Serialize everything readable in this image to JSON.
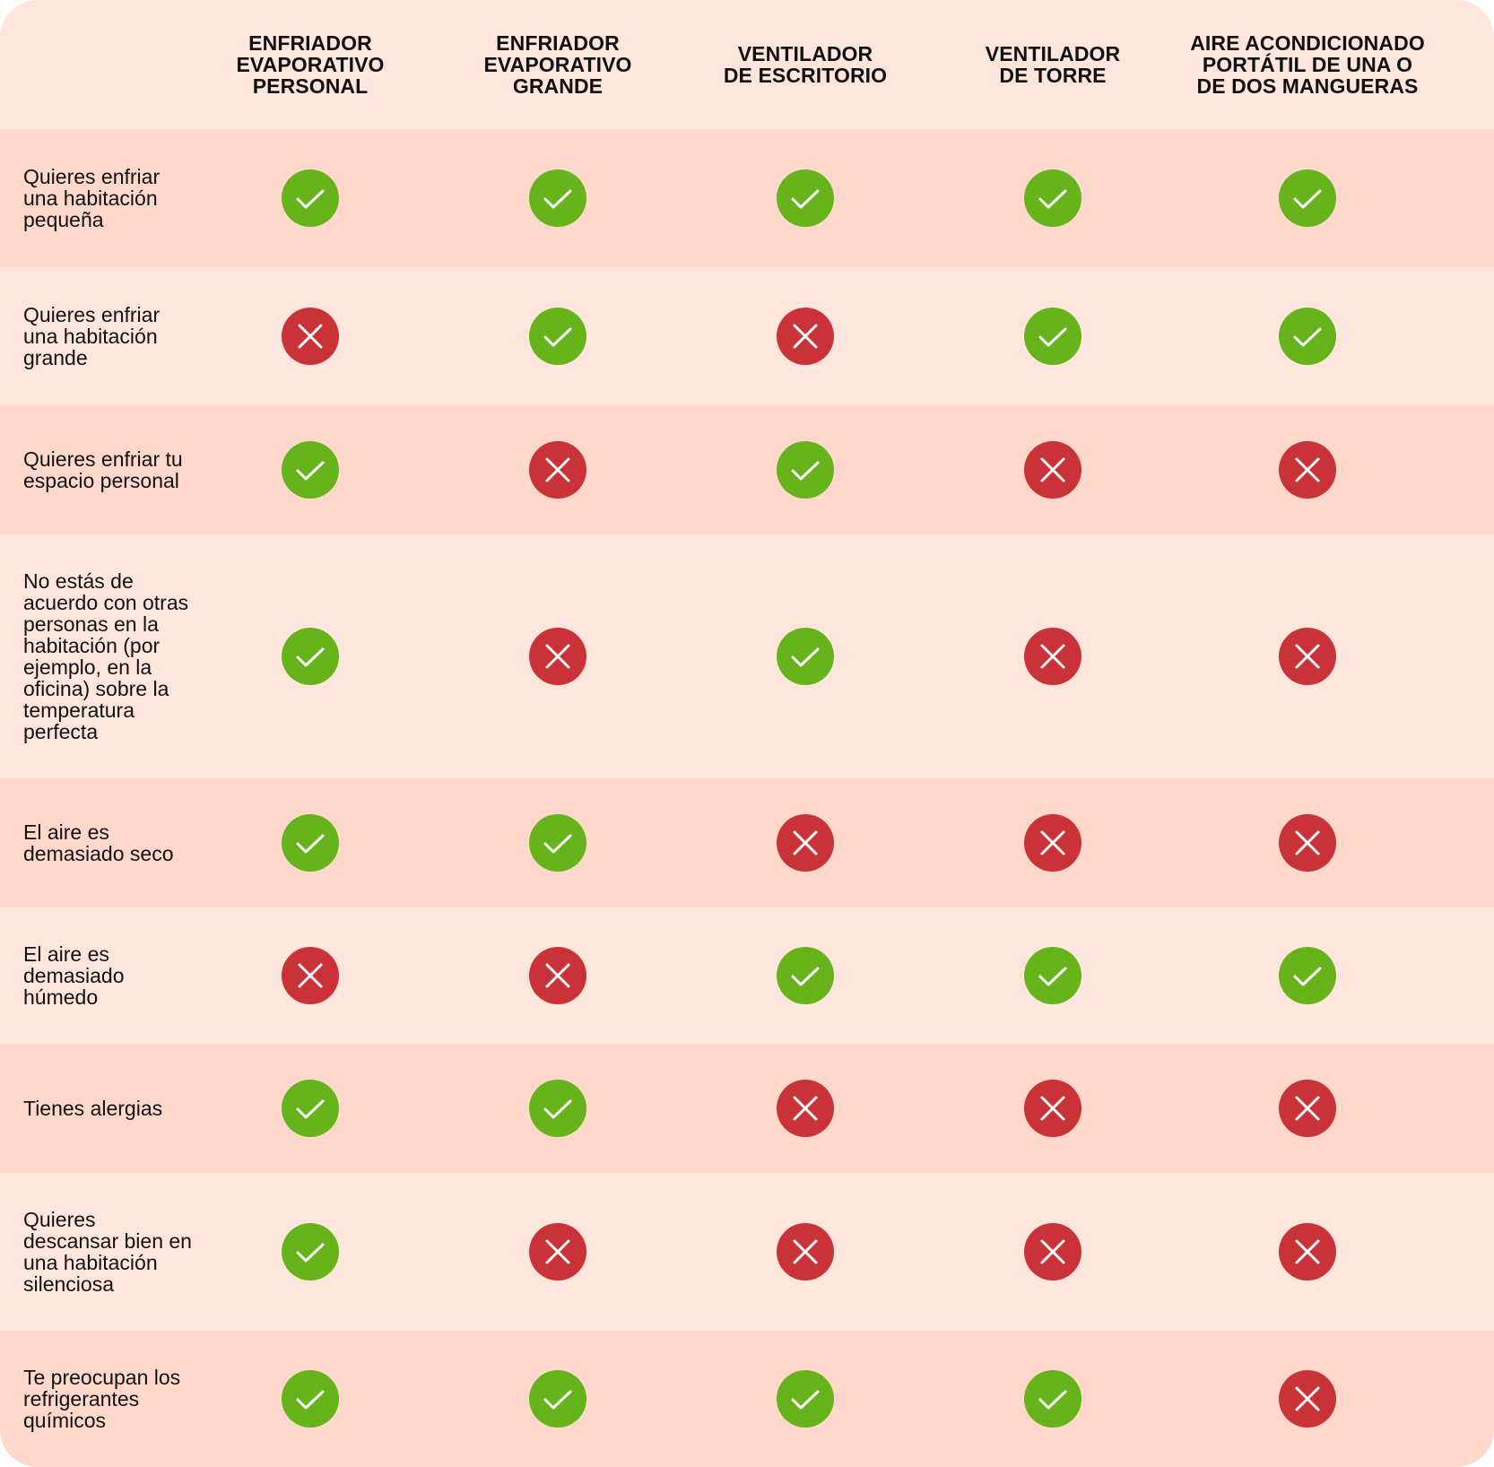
{
  "columns": [
    "ENFRIADOR\nEVAPORATIVO\nPERSONAL",
    "ENFRIADOR\nEVAPORATIVO\nGRANDE",
    "VENTILADOR\nDE ESCRITORIO",
    "VENTILADOR\nDE TORRE",
    "AIRE ACONDICIONADO\nPORTÁTIL DE UNA O\nDE DOS MANGUERAS"
  ],
  "rows": [
    {
      "label": "Quieres enfriar\nuna habitación\npequeña",
      "values": [
        "yes",
        "yes",
        "yes",
        "yes",
        "yes"
      ]
    },
    {
      "label": "Quieres enfriar\nuna habitación\ngrande",
      "values": [
        "no",
        "yes",
        "no",
        "yes",
        "yes"
      ]
    },
    {
      "label": "Quieres enfriar tu\nespacio personal",
      "values": [
        "yes",
        "no",
        "yes",
        "no",
        "no"
      ]
    },
    {
      "label": "No estás de\nacuerdo con otras\npersonas en la\nhabitación (por\nejemplo, en la\noficina) sobre la\ntemperatura\nperfecta",
      "values": [
        "yes",
        "no",
        "yes",
        "no",
        "no"
      ]
    },
    {
      "label": "El aire es\ndemasiado seco",
      "values": [
        "yes",
        "yes",
        "no",
        "no",
        "no"
      ]
    },
    {
      "label": "El aire es\ndemasiado\nhúmedo",
      "values": [
        "no",
        "no",
        "yes",
        "yes",
        "yes"
      ]
    },
    {
      "label": "Tienes alergias",
      "values": [
        "yes",
        "yes",
        "no",
        "no",
        "no"
      ]
    },
    {
      "label": "Quieres\ndescansar bien en\nuna habitación\nsilenciosa",
      "values": [
        "yes",
        "no",
        "no",
        "no",
        "no"
      ]
    },
    {
      "label": "Te preocupan los\nrefrigerantes\nquímicos",
      "values": [
        "yes",
        "yes",
        "yes",
        "yes",
        "no"
      ]
    }
  ],
  "icons": {
    "yes": "check-icon",
    "no": "cross-icon"
  },
  "colors": {
    "yes": "#66b31b",
    "no": "#c93236",
    "row_dark": "#ffd8cc",
    "row_light": "#ffe6dd"
  }
}
